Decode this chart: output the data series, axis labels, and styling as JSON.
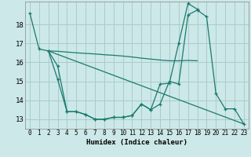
{
  "xlabel": "Humidex (Indice chaleur)",
  "bg_color": "#cce8e8",
  "line_color": "#1a7a6e",
  "grid_color": "#aacccc",
  "xlim": [
    -0.5,
    23.5
  ],
  "ylim": [
    12.5,
    19.2
  ],
  "yticks": [
    13,
    14,
    15,
    16,
    17,
    18
  ],
  "xticks": [
    0,
    1,
    2,
    3,
    4,
    5,
    6,
    7,
    8,
    9,
    10,
    11,
    12,
    13,
    14,
    15,
    16,
    17,
    18,
    19,
    20,
    21,
    22,
    23
  ],
  "lines": [
    {
      "x": [
        0,
        1,
        2,
        3,
        4,
        5,
        6,
        7,
        8,
        9,
        10,
        11,
        12,
        13,
        14,
        15,
        16,
        17,
        18
      ],
      "y": [
        18.6,
        16.7,
        16.6,
        15.1,
        13.4,
        13.4,
        13.25,
        13.0,
        13.0,
        13.1,
        13.1,
        13.2,
        13.8,
        13.5,
        14.85,
        14.9,
        17.0,
        19.1,
        18.8
      ],
      "marker": true
    },
    {
      "x": [
        2,
        3,
        4,
        5,
        6,
        7,
        8,
        9,
        10,
        11,
        12,
        13,
        14,
        15,
        16,
        17,
        18
      ],
      "y": [
        16.6,
        16.58,
        16.54,
        16.5,
        16.47,
        16.44,
        16.4,
        16.37,
        16.33,
        16.28,
        16.22,
        16.17,
        16.12,
        16.08,
        16.08,
        16.1,
        16.08
      ],
      "marker": false
    },
    {
      "x": [
        2,
        23
      ],
      "y": [
        16.6,
        12.75
      ],
      "marker": false
    },
    {
      "x": [
        2,
        3,
        4,
        5,
        6,
        7,
        8,
        9,
        10,
        11,
        12,
        13,
        14,
        15,
        16,
        17,
        18,
        19,
        20,
        21,
        22,
        23
      ],
      "y": [
        16.6,
        15.8,
        13.4,
        13.4,
        13.25,
        13.0,
        13.0,
        13.1,
        13.1,
        13.2,
        13.8,
        13.5,
        13.8,
        15.0,
        14.85,
        18.5,
        18.75,
        18.4,
        14.35,
        13.55,
        13.55,
        12.75
      ],
      "marker": true
    }
  ]
}
